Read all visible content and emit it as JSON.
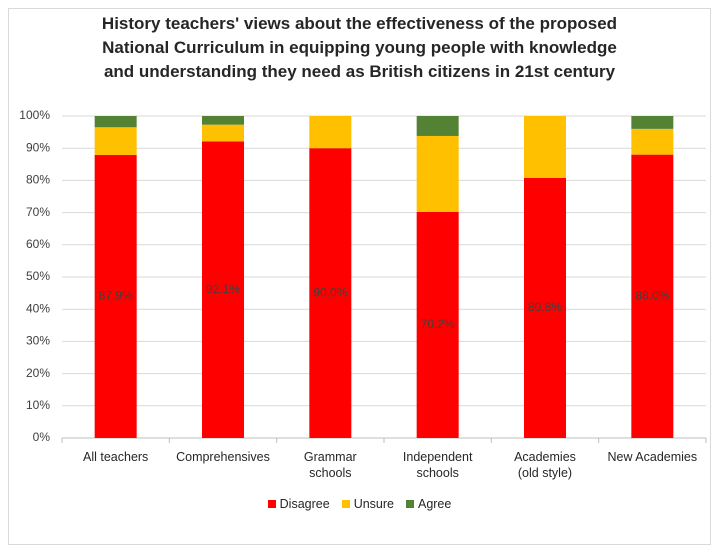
{
  "chart_data": {
    "type": "stacked_bar",
    "title": "History teachers' views about the effectiveness of the proposed\nNational Curriculum in equipping young people with knowledge\nand understanding they need as British citizens in 21st century",
    "categories": [
      "All teachers",
      "Comprehensives",
      "Grammar\nschools",
      "Independent\nschools",
      "Academies\n(old style)",
      "New Academies"
    ],
    "series": [
      {
        "name": "Disagree",
        "color": "#ff0000",
        "values": [
          87.9,
          92.1,
          90.0,
          70.2,
          80.8,
          88.0
        ],
        "value_labels": [
          "87.9%",
          "92.1%",
          "90.0%",
          "70.2%",
          "80.8%",
          "88.0%"
        ]
      },
      {
        "name": "Unsure",
        "color": "#ffc000",
        "values": [
          8.6,
          5.2,
          10.0,
          23.6,
          19.2,
          8.0
        ]
      },
      {
        "name": "Agree",
        "color": "#548235",
        "values": [
          3.5,
          2.7,
          0,
          6.2,
          0,
          4.0
        ]
      }
    ],
    "ylim": [
      0,
      100
    ],
    "yticks": [
      {
        "value": 0,
        "label": "0%"
      },
      {
        "value": 10,
        "label": "10%"
      },
      {
        "value": 20,
        "label": "20%"
      },
      {
        "value": 30,
        "label": "30%"
      },
      {
        "value": 40,
        "label": "40%"
      },
      {
        "value": 50,
        "label": "50%"
      },
      {
        "value": 60,
        "label": "60%"
      },
      {
        "value": 70,
        "label": "70%"
      },
      {
        "value": 80,
        "label": "80%"
      },
      {
        "value": 90,
        "label": "90%"
      },
      {
        "value": 100,
        "label": "100%"
      }
    ],
    "grid": true,
    "legend": "bottom"
  }
}
